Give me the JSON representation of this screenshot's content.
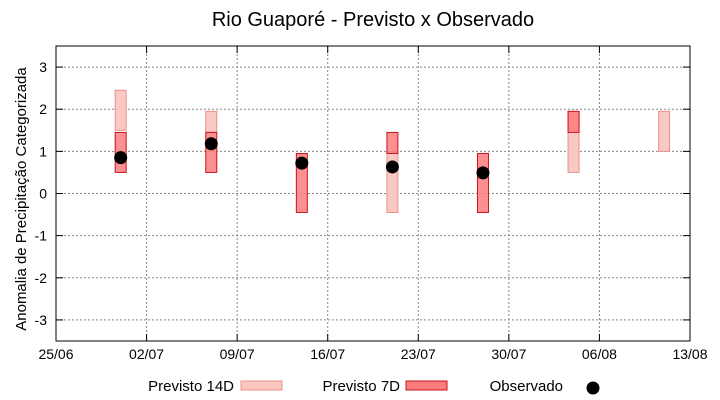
{
  "chart_data": {
    "type": "range-bar",
    "title": "Rio Guaporé - Previsto x Observado",
    "xlabel": "",
    "ylabel": "Anomalia de Precipitação Categorizada",
    "xlim": [
      "2021-06-25",
      "2021-08-13"
    ],
    "ylim": [
      -3.5,
      3.5
    ],
    "yticks": [
      -3,
      -2,
      -1,
      0,
      1,
      2,
      3
    ],
    "xtick_labels": [
      "25/06",
      "02/07",
      "09/07",
      "16/07",
      "23/07",
      "30/07",
      "06/08",
      "13/08"
    ],
    "grid": true,
    "legend_position": "bottom",
    "colors": {
      "previsto_14d_fill": "#fbc6c0",
      "previsto_14d_edge": "#e8908a",
      "previsto_7d_fill": "#fa7c7c",
      "previsto_7d_edge": "#c8141e",
      "observado": "#000000",
      "grid": "#888888"
    },
    "series": [
      {
        "name": "Previsto 14D",
        "kind": "range",
        "values": [
          {
            "date": "2021-06-30",
            "low": 1.5,
            "high": 2.45
          },
          {
            "date": "2021-07-07",
            "low": 1.45,
            "high": 1.95
          },
          {
            "date": "2021-07-21",
            "low": -0.45,
            "high": 1.0
          },
          {
            "date": "2021-08-04",
            "low": 0.5,
            "high": 1.95
          },
          {
            "date": "2021-08-11",
            "low": 1.0,
            "high": 1.95
          }
        ]
      },
      {
        "name": "Previsto 7D",
        "kind": "range",
        "values": [
          {
            "date": "2021-06-30",
            "low": 0.5,
            "high": 1.45
          },
          {
            "date": "2021-07-07",
            "low": 0.5,
            "high": 1.45
          },
          {
            "date": "2021-07-14",
            "low": -0.45,
            "high": 0.95
          },
          {
            "date": "2021-07-21",
            "low": 0.95,
            "high": 1.45
          },
          {
            "date": "2021-07-28",
            "low": -0.45,
            "high": 0.95
          },
          {
            "date": "2021-08-04",
            "low": 1.45,
            "high": 1.95
          }
        ]
      },
      {
        "name": "Observado",
        "kind": "point",
        "values": [
          {
            "date": "2021-06-30",
            "y": 0.85
          },
          {
            "date": "2021-07-07",
            "y": 1.18
          },
          {
            "date": "2021-07-14",
            "y": 0.72
          },
          {
            "date": "2021-07-21",
            "y": 0.63
          },
          {
            "date": "2021-07-28",
            "y": 0.49
          }
        ]
      }
    ],
    "legend": {
      "previsto_14d": "Previsto 14D",
      "previsto_7d": "Previsto 7D",
      "observado": "Observado"
    }
  }
}
